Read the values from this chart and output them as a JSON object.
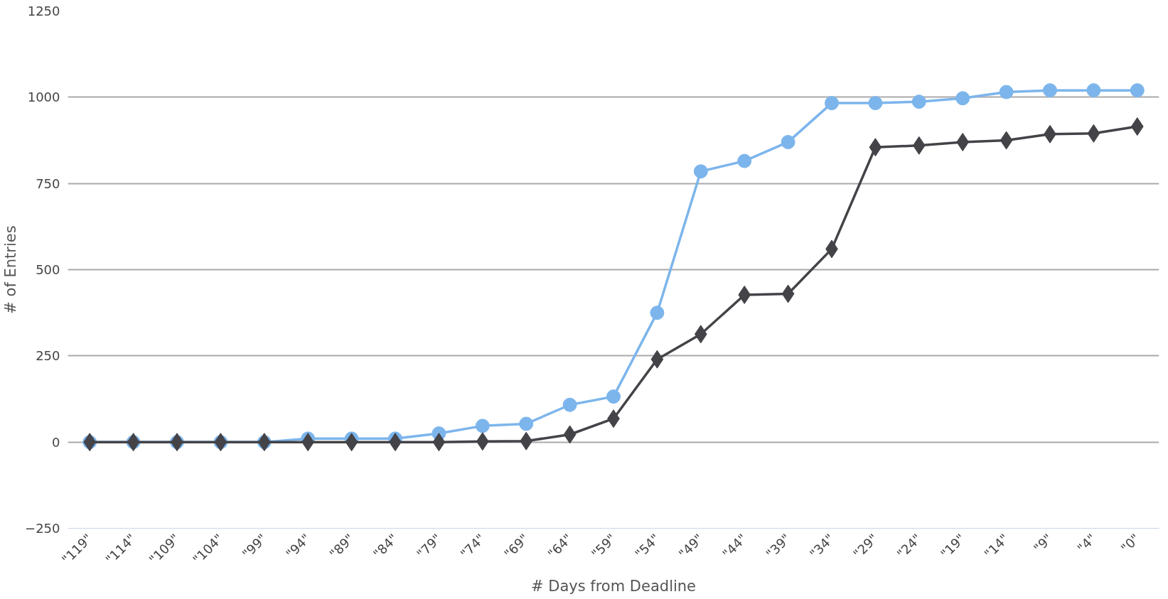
{
  "chart_data": {
    "type": "line",
    "xlabel": "# Days from Deadline",
    "ylabel": "# of Entries",
    "categories": [
      "\"119\"",
      "\"114\"",
      "\"109\"",
      "\"104\"",
      "\"99\"",
      "\"94\"",
      "\"89\"",
      "\"84\"",
      "\"79\"",
      "\"74\"",
      "\"69\"",
      "\"64\"",
      "\"59\"",
      "\"54\"",
      "\"49\"",
      "\"44\"",
      "\"39\"",
      "\"34\"",
      "\"29\"",
      "\"24\"",
      "\"19\"",
      "\"14\"",
      "\"9\"",
      "\"4\"",
      "\"0\""
    ],
    "series": [
      {
        "color": "#7cb5ec",
        "marker": "circle",
        "values": [
          0,
          0,
          0,
          0,
          0,
          10,
          10,
          10,
          25,
          47,
          53,
          108,
          132,
          375,
          785,
          815,
          870,
          983,
          983,
          987,
          997,
          1015,
          1020,
          1020,
          1020
        ]
      },
      {
        "color": "#434348",
        "marker": "diamond",
        "values": [
          0,
          0,
          0,
          0,
          0,
          0,
          0,
          0,
          0,
          2,
          3,
          22,
          68,
          240,
          313,
          427,
          430,
          560,
          855,
          860,
          870,
          875,
          893,
          895,
          915
        ]
      }
    ],
    "ylim": [
      -250,
      1250
    ],
    "yticks": [
      -250,
      0,
      250,
      500,
      750,
      1000,
      1250
    ],
    "grid": "y",
    "line_style": "solid"
  }
}
